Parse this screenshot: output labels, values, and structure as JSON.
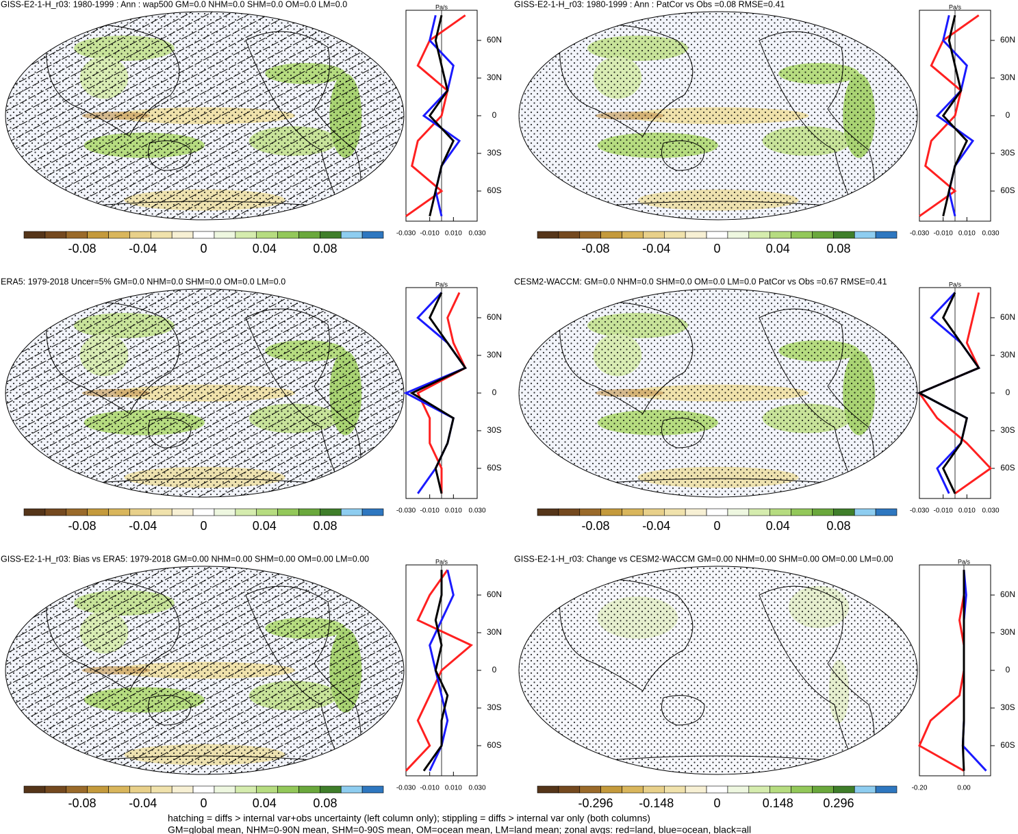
{
  "panels": [
    {
      "title": "GISS-E2-1-H_r03: 1980-1999 : Ann : wap500 GM=0.0 NHM=0.0 SHM=0.0 OM=0.0 LM=0.0",
      "hatching": true,
      "colorbar": {
        "labels": [
          "-0.08",
          "-0.04",
          "0",
          "0.04",
          "0.08"
        ]
      },
      "profile": {
        "unit": "Pa/s",
        "xlim": [
          -0.03,
          0.03
        ],
        "xticks": [
          {
            "value": -0.03,
            "label": "-0.030"
          },
          {
            "value": -0.01,
            "label": "-0.010"
          },
          {
            "value": 0.01,
            "label": "0.010"
          },
          {
            "value": 0.03,
            "label": "0.030"
          }
        ],
        "ylim": [
          -84,
          84
        ],
        "yticks": [
          {
            "value": 60,
            "label": "60N"
          },
          {
            "value": 30,
            "label": "30N"
          },
          0,
          {
            "value": -30,
            "label": "30S"
          },
          {
            "value": -60,
            "label": "60S"
          }
        ],
        "lat": [
          80,
          60,
          40,
          20,
          0,
          -20,
          -40,
          -60,
          -80
        ],
        "series": [
          {
            "color": "#ff2020",
            "values": [
              0.02,
              -0.01,
              -0.02,
              0.005,
              0.0,
              -0.02,
              -0.025,
              0.0,
              -0.03
            ]
          },
          {
            "color": "#1a1aff",
            "values": [
              -0.005,
              -0.01,
              0.01,
              0.005,
              -0.015,
              0.015,
              0.0,
              -0.005,
              0.0
            ]
          },
          {
            "color": "#000000",
            "values": [
              0.0,
              -0.005,
              0.0,
              0.005,
              -0.01,
              0.01,
              0.0,
              -0.005,
              -0.01
            ]
          }
        ]
      }
    },
    {
      "title": "GISS-E2-1-H_r03: 1980-1999 : Ann : PatCor vs Obs =0.08 RMSE=0.41",
      "hatching": false,
      "colorbar": {
        "labels": [
          "-0.08",
          "-0.04",
          "0",
          "0.04",
          "0.08"
        ]
      },
      "profile": {
        "unit": "Pa/s",
        "xlim": [
          -0.03,
          0.03
        ],
        "xticks": [
          {
            "value": -0.03,
            "label": "-0.030"
          },
          {
            "value": -0.01,
            "label": "-0.010"
          },
          {
            "value": 0.01,
            "label": "0.010"
          },
          {
            "value": 0.03,
            "label": "0.030"
          }
        ],
        "ylim": [
          -84,
          84
        ],
        "yticks": [
          {
            "value": 60,
            "label": "60N"
          },
          {
            "value": 30,
            "label": "30N"
          },
          0,
          {
            "value": -30,
            "label": "30S"
          },
          {
            "value": -60,
            "label": "60S"
          }
        ],
        "lat": [
          80,
          60,
          40,
          20,
          0,
          -20,
          -40,
          -60,
          -80
        ],
        "series": [
          {
            "color": "#ff2020",
            "values": [
              0.02,
              -0.01,
              -0.02,
              0.005,
              0.0,
              -0.02,
              -0.025,
              0.0,
              -0.03
            ]
          },
          {
            "color": "#1a1aff",
            "values": [
              -0.005,
              -0.01,
              0.01,
              0.005,
              -0.015,
              0.015,
              0.0,
              -0.005,
              0.0
            ]
          },
          {
            "color": "#000000",
            "values": [
              0.0,
              -0.005,
              0.0,
              0.005,
              -0.01,
              0.01,
              0.0,
              -0.005,
              -0.01
            ]
          }
        ]
      }
    },
    {
      "title": "ERA5: 1979-2018 Uncer=5% GM=0.0 NHM=0.0 SHM=0.0 OM=0.0 LM=0.0",
      "hatching": true,
      "colorbar": {
        "labels": [
          "-0.08",
          "-0.04",
          "0",
          "0.04",
          "0.08"
        ]
      },
      "profile": {
        "unit": "Pa/s",
        "xlim": [
          -0.03,
          0.03
        ],
        "xticks": [
          {
            "value": -0.03,
            "label": "-0.030"
          },
          {
            "value": -0.01,
            "label": "-0.010"
          },
          {
            "value": 0.01,
            "label": "0.010"
          },
          {
            "value": 0.03,
            "label": "0.030"
          }
        ],
        "ylim": [
          -84,
          84
        ],
        "yticks": [
          {
            "value": 60,
            "label": "60N"
          },
          {
            "value": 30,
            "label": "30N"
          },
          0,
          {
            "value": -30,
            "label": "30S"
          },
          {
            "value": -60,
            "label": "60S"
          }
        ],
        "lat": [
          80,
          60,
          40,
          20,
          0,
          -20,
          -40,
          -60,
          -80
        ],
        "series": [
          {
            "color": "#ff2020",
            "values": [
              0.015,
              0.005,
              0.01,
              0.02,
              -0.02,
              -0.01,
              -0.01,
              0.0,
              0.0
            ]
          },
          {
            "color": "#1a1aff",
            "values": [
              0.0,
              -0.02,
              0.005,
              0.02,
              -0.03,
              0.01,
              0.005,
              -0.005,
              -0.02
            ]
          },
          {
            "color": "#000000",
            "values": [
              0.0,
              -0.01,
              0.005,
              0.02,
              -0.025,
              0.01,
              0.005,
              -0.005,
              0.0
            ]
          }
        ]
      }
    },
    {
      "title": "CESM2-WACCM: GM=0.0 NHM=0.0 SHM=0.0 OM=0.0 LM=0.0 PatCor vs Obs =0.67 RMSE=0.41",
      "hatching": false,
      "colorbar": {
        "labels": [
          "-0.08",
          "-0.04",
          "0",
          "0.04",
          "0.08"
        ]
      },
      "profile": {
        "unit": "Pa/s",
        "xlim": [
          -0.03,
          0.03
        ],
        "xticks": [
          {
            "value": -0.03,
            "label": "-0.030"
          },
          {
            "value": -0.01,
            "label": "-0.010"
          },
          {
            "value": 0.01,
            "label": "0.010"
          },
          {
            "value": 0.03,
            "label": "0.030"
          }
        ],
        "ylim": [
          -84,
          84
        ],
        "yticks": [
          {
            "value": 60,
            "label": "60N"
          },
          {
            "value": 30,
            "label": "30N"
          },
          0,
          {
            "value": -30,
            "label": "30S"
          },
          {
            "value": -60,
            "label": "60S"
          }
        ],
        "lat": [
          80,
          60,
          40,
          20,
          0,
          -20,
          -40,
          -60,
          -80
        ],
        "series": [
          {
            "color": "#ff2020",
            "values": [
              0.02,
              0.015,
              0.01,
              0.02,
              -0.03,
              -0.015,
              0.01,
              0.03,
              0.0
            ]
          },
          {
            "color": "#1a1aff",
            "values": [
              0.0,
              -0.02,
              0.005,
              0.02,
              -0.03,
              0.01,
              0.005,
              -0.015,
              -0.005
            ]
          },
          {
            "color": "#000000",
            "values": [
              0.0,
              -0.01,
              0.005,
              0.02,
              -0.03,
              0.01,
              0.005,
              -0.01,
              0.0
            ]
          }
        ]
      }
    },
    {
      "title": "GISS-E2-1-H_r03: Bias vs ERA5: 1979-2018 GM=0.00 NHM=0.00 SHM=0.00 OM=0.00 LM=0.00",
      "hatching": true,
      "colorbar": {
        "labels": [
          "-0.08",
          "-0.04",
          "0",
          "0.04",
          "0.08"
        ]
      },
      "profile": {
        "unit": "Pa/s",
        "xlim": [
          -0.03,
          0.03
        ],
        "xticks": [
          {
            "value": -0.03,
            "label": "-0.030"
          },
          {
            "value": -0.01,
            "label": "-0.010"
          },
          {
            "value": 0.01,
            "label": "0.010"
          },
          {
            "value": 0.03,
            "label": "0.030"
          }
        ],
        "ylim": [
          -84,
          84
        ],
        "yticks": [
          {
            "value": 60,
            "label": "60N"
          },
          {
            "value": 30,
            "label": "30N"
          },
          0,
          {
            "value": -30,
            "label": "30S"
          },
          {
            "value": -60,
            "label": "60S"
          }
        ],
        "lat": [
          80,
          60,
          40,
          20,
          0,
          -20,
          -40,
          -60,
          -80
        ],
        "series": [
          {
            "color": "#ff2020",
            "values": [
              0.005,
              -0.01,
              -0.02,
              0.025,
              0.0,
              -0.01,
              -0.02,
              -0.01,
              -0.03
            ]
          },
          {
            "color": "#1a1aff",
            "values": [
              0.005,
              0.01,
              0.0,
              -0.01,
              -0.005,
              0.0,
              0.005,
              0.0,
              -0.01
            ]
          },
          {
            "color": "#000000",
            "values": [
              0.0,
              0.0,
              -0.005,
              0.0,
              -0.005,
              0.005,
              0.0,
              0.0,
              -0.015
            ]
          }
        ]
      }
    },
    {
      "title": "GISS-E2-1-H_r03: Change vs CESM2-WACCM GM=0.00 NHM=0.00 SHM=0.00 OM=0.00 LM=0.00",
      "hatching": false,
      "colorbar": {
        "labels": [
          "-0.296",
          "-0.148",
          "0",
          "0.148",
          "0.296"
        ]
      },
      "profile": {
        "unit": "Pa/s",
        "xlim": [
          -0.2,
          0.12
        ],
        "xticks": [
          {
            "value": -0.2,
            "label": "-0.20"
          },
          {
            "value": 0,
            "label": "0.00"
          }
        ],
        "ylim": [
          -84,
          84
        ],
        "yticks": [
          {
            "value": 60,
            "label": "60N"
          },
          {
            "value": 30,
            "label": "30N"
          },
          0,
          {
            "value": -30,
            "label": "30S"
          },
          {
            "value": -60,
            "label": "60S"
          }
        ],
        "lat": [
          80,
          60,
          40,
          20,
          0,
          -20,
          -40,
          -60,
          -80
        ],
        "series": [
          {
            "color": "#ff2020",
            "values": [
              0.0,
              0.0,
              -0.02,
              0.0,
              0.0,
              -0.02,
              -0.15,
              -0.2,
              0.0
            ]
          },
          {
            "color": "#1a1aff",
            "values": [
              0.0,
              0.01,
              0.0,
              0.0,
              0.0,
              0.0,
              0.0,
              -0.005,
              0.1
            ]
          },
          {
            "color": "#000000",
            "values": [
              0.0,
              0.0,
              0.0,
              0.0,
              0.0,
              0.0,
              0.0,
              -0.005,
              0.0
            ]
          }
        ]
      }
    }
  ],
  "colorbar_colors": [
    "#553519",
    "#74491f",
    "#9a6a2a",
    "#c49a3c",
    "#d9b65c",
    "#e8d08a",
    "#f0e2ac",
    "#f7f0d4",
    "#ffffff",
    "#eef7e0",
    "#d5ecae",
    "#b6dc80",
    "#93c85a",
    "#6aa83c",
    "#3f7e2a",
    "#8ecdf0",
    "#2e77c0"
  ],
  "footer": [
    "hatching = diffs > internal var+obs uncertainty (left column only); stippling = diffs > internal var only (both columns)",
    "GM=global mean, NHM=0-90N mean, SHM=0-90S mean, OM=ocean mean, LM=land mean; zonal avgs: red=land, blue=ocean, black=all"
  ]
}
